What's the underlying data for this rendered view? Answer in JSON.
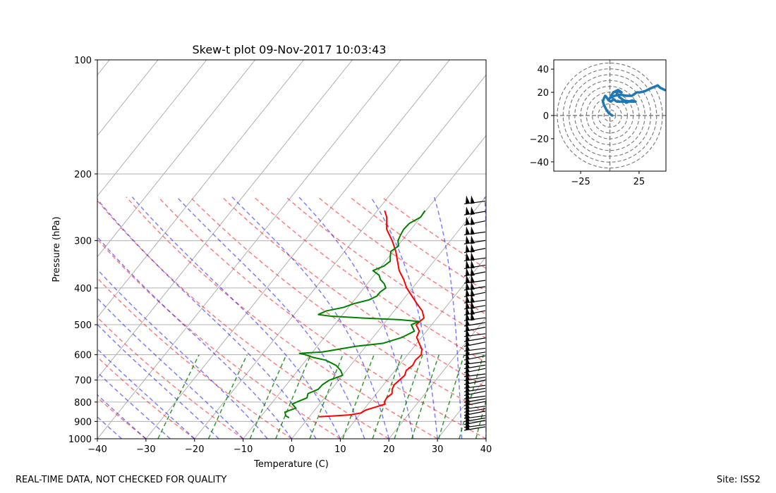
{
  "chart_data": [
    {
      "type": "line",
      "title": "Skew-t plot 09-Nov-2017 10:03:43",
      "xlabel": "Temperature (C)",
      "ylabel": "Pressure (hPa)",
      "xlim": [
        -40,
        40
      ],
      "ylim": [
        1000,
        100
      ],
      "yscale": "log",
      "xticks": [
        -40,
        -30,
        -20,
        -10,
        0,
        10,
        20,
        30,
        40
      ],
      "yticks": [
        100,
        200,
        300,
        400,
        500,
        600,
        700,
        800,
        900,
        1000
      ],
      "grid": true,
      "series": [
        {
          "color": "#ff0000",
          "p": [
            875,
            870,
            865,
            855,
            840,
            825,
            810,
            800,
            780,
            760,
            740,
            720,
            700,
            680,
            660,
            640,
            620,
            600,
            580,
            560,
            540,
            520,
            500,
            480,
            460,
            440,
            420,
            400,
            380,
            360,
            340,
            320,
            300,
            280,
            260,
            250
          ],
          "x": [
            2,
            5,
            8,
            10,
            10.5,
            12,
            13.5,
            13,
            12.8,
            13.2,
            12.5,
            12.2,
            12.5,
            12.8,
            12.3,
            12.8,
            12.5,
            12.8,
            12,
            10.5,
            9,
            8.5,
            6.8,
            7.3,
            5.8,
            3.5,
            1.2,
            -1.2,
            -3.2,
            -5.6,
            -7.5,
            -9.5,
            -12,
            -15,
            -17,
            -18.5
          ]
        },
        {
          "color": "#008000",
          "p": [
            880,
            870,
            850,
            830,
            810,
            800,
            780,
            760,
            740,
            720,
            700,
            680,
            660,
            640,
            620,
            610,
            600,
            595,
            590,
            580,
            570,
            560,
            540,
            520,
            500,
            490,
            485,
            480,
            475,
            470,
            460,
            450,
            440,
            430,
            420,
            410,
            400,
            390,
            380,
            370,
            360,
            350,
            340,
            330,
            320,
            310,
            300,
            290,
            280,
            270,
            260,
            250
          ],
          "x": [
            -4,
            -5,
            -5.8,
            -4.2,
            -5.6,
            -5,
            -3.6,
            -4.1,
            -2.7,
            -2.6,
            -1.9,
            0,
            -1.2,
            -3,
            -6,
            -9,
            -11,
            -12.5,
            -8,
            -5,
            -2,
            3,
            6,
            7.5,
            5.8,
            6.8,
            2.5,
            -5.5,
            -12,
            -15,
            -14,
            -11,
            -9.5,
            -7,
            -6,
            -6,
            -5.5,
            -6.5,
            -8,
            -9,
            -11,
            -9.5,
            -9,
            -9.8,
            -10.5,
            -9.8,
            -10.8,
            -11.2,
            -11.5,
            -11.3,
            -10,
            -10.2
          ]
        }
      ],
      "reference_lines": {
        "isotherms": true,
        "dry_adiabats": {
          "color": "#ff0000",
          "style": "dashed"
        },
        "moist_adiabats": {
          "color": "#0000ff",
          "style": "dashed"
        },
        "mixing_ratio": {
          "color": "#008000",
          "style": "dashed"
        }
      },
      "wind_barbs": {
        "x": 36,
        "p_range": [
          240,
          950
        ]
      }
    },
    {
      "type": "line",
      "title": "",
      "xlim": [
        -48,
        48
      ],
      "ylim": [
        -48,
        48
      ],
      "xticks": [
        -25,
        25
      ],
      "yticks": [
        -40,
        -20,
        0,
        20,
        40
      ],
      "rings": [
        5,
        10,
        15,
        20,
        25,
        30,
        35,
        40,
        45
      ],
      "series": [
        {
          "color": "#1f77b4",
          "u": [
            2,
            0.5,
            -1,
            -3,
            -5,
            -6,
            -5,
            -4,
            -3,
            -1,
            1,
            3,
            6,
            10,
            13,
            14,
            16,
            19,
            22,
            18,
            12,
            8,
            7,
            6,
            6,
            10,
            7,
            3,
            0,
            4,
            9,
            14,
            19,
            23,
            26,
            30,
            34,
            41,
            43,
            47
          ],
          "v": [
            0,
            1,
            2,
            5,
            9,
            12,
            15,
            17,
            16,
            13,
            12,
            14,
            12,
            12,
            12,
            11,
            12,
            13,
            12,
            12,
            13,
            16,
            18,
            19,
            21,
            20,
            22,
            20,
            15,
            17,
            18,
            17,
            17,
            20,
            20,
            21,
            23,
            26,
            24,
            22
          ]
        }
      ]
    }
  ],
  "footer": {
    "left": "REAL-TIME DATA, NOT CHECKED FOR QUALITY",
    "right": "Site: ISS2"
  }
}
